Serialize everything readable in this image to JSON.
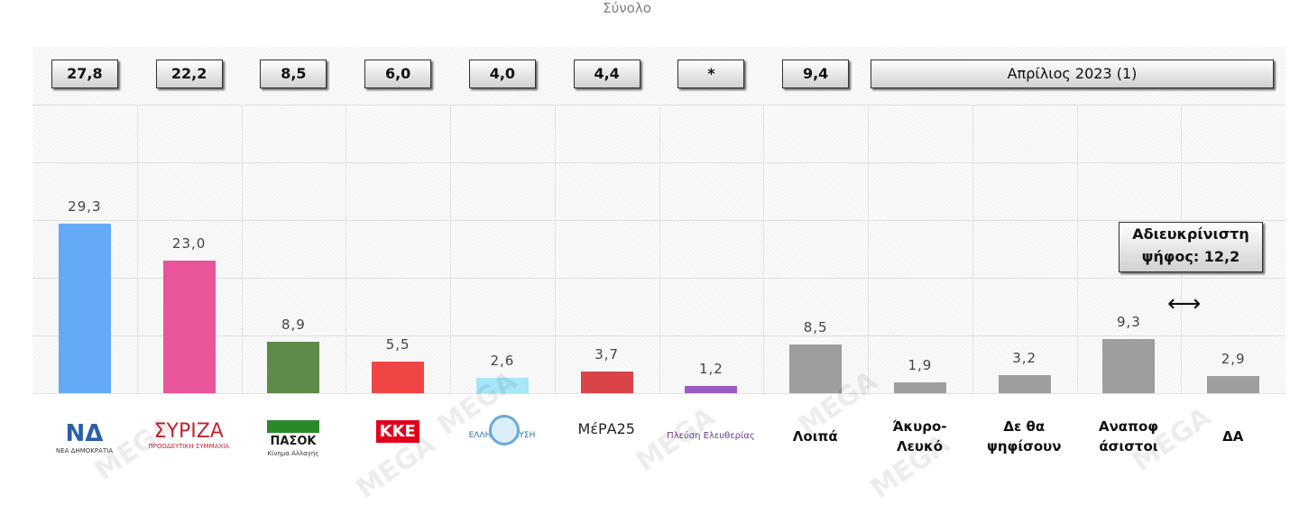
{
  "chart_data": {
    "type": "bar",
    "title": "Σύνολο",
    "ylim": [
      0,
      60
    ],
    "grid": true,
    "categories": [
      "ΝΔ",
      "ΣΥΡΙΖΑ",
      "ΠΑΣΟΚ",
      "ΚΚΕ",
      "Ελληνική Λύση",
      "ΜέΡΑ25",
      "Πλεύση Ελευθερίας",
      "Λοιπά",
      "Άκυρο-Λευκό",
      "Δε θα ψηφίσουν",
      "Αναποφάσιστοι",
      "ΔΑ"
    ],
    "values": [
      29.3,
      23.0,
      8.9,
      5.5,
      2.6,
      3.7,
      1.2,
      8.5,
      1.9,
      3.2,
      9.3,
      2.9
    ],
    "value_labels": [
      "29,3",
      "23,0",
      "8,9",
      "5,5",
      "2,6",
      "3,7",
      "1,2",
      "8,5",
      "1,9",
      "3,2",
      "9,3",
      "2,9"
    ],
    "colors": [
      "#64aaf5",
      "#ea5499",
      "#5f8a4a",
      "#f04545",
      "#a8e6f9",
      "#d94448",
      "#9a5cc0",
      "#9e9e9e",
      "#9e9e9e",
      "#9e9e9e",
      "#9e9e9e",
      "#9e9e9e"
    ],
    "previous_values": [
      "27,8",
      "22,2",
      "8,5",
      "6,0",
      "4,0",
      "4,4",
      "*",
      "9,4"
    ],
    "previous_period": "Απρίλιος 2023 (1)",
    "annotation_line1": "Αδιευκρίνιστη",
    "annotation_line2": "ψήφος: 12,2",
    "text_categories": [
      "Λοιπά",
      "Άκυρο-\nΛευκό",
      "Δε θα\nψηφίσουν",
      "Αναποφ\nάσιστοι",
      "ΔΑ"
    ],
    "logos": [
      "ΝΔ",
      "ΣΥΡΙΖΑ",
      "ΠΑΣΟΚ",
      "ΚΚΕ",
      "ΕΛΛΗΝΙΚΗ ΛΥΣΗ",
      "ΜέΡΑ25",
      "Πλεύση Ελευθερίας"
    ],
    "logo_sublabels": [
      "ΝΕΑ ΔΗΜΟΚΡΑΤΙΑ",
      "ΠΡΟΟΔΕΥΤΙΚΗ ΣΥΜΜΑΧΙΑ",
      "Κίνημα Αλλαγής",
      "",
      "",
      "",
      ""
    ],
    "watermark": "MEGA"
  }
}
